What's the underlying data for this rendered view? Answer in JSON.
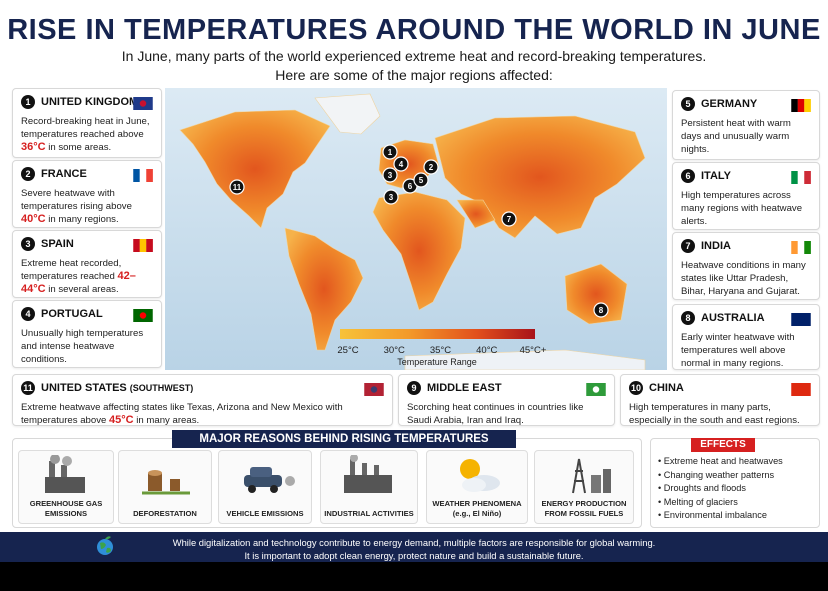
{
  "header": {
    "title": "RISE IN TEMPERATURES AROUND THE WORLD IN JUNE",
    "subtitle_lines": [
      "In June, many parts of the world experienced extreme heat and record-breaking temperatures.",
      "Here are some of the major regions affected:"
    ]
  },
  "regions": [
    {
      "number": "1",
      "name": "UNITED KINGDOM",
      "text": [
        {
          "text": "Record-breaking heat in June, temperatures reached above ",
          "highlight": false
        },
        {
          "text": "36°C",
          "highlight": true
        },
        {
          "text": " in some areas.",
          "highlight": false
        }
      ]
    },
    {
      "number": "2",
      "name": "FRANCE",
      "text": [
        {
          "text": "Severe heatwave with temperatures rising above ",
          "highlight": false
        },
        {
          "text": "40°C",
          "highlight": true
        },
        {
          "text": " in many regions.",
          "highlight": false
        }
      ]
    },
    {
      "number": "3",
      "name": "SPAIN",
      "text": [
        {
          "text": "Extreme heat recorded, temperatures reached ",
          "highlight": false
        },
        {
          "text": "42–44°C",
          "highlight": true
        },
        {
          "text": " in several areas.",
          "highlight": false
        }
      ]
    },
    {
      "number": "4",
      "name": "PORTUGAL",
      "text": [
        {
          "text": "Unusually high temperatures and intense heatwave conditions.",
          "highlight": false
        }
      ]
    },
    {
      "number": "5",
      "name": "GERMANY",
      "text": [
        {
          "text": "Persistent heat with warm days and unusually warm nights.",
          "highlight": false
        }
      ]
    },
    {
      "number": "6",
      "name": "ITALY",
      "text": [
        {
          "text": "High temperatures across many regions with heatwave alerts.",
          "highlight": false
        }
      ]
    },
    {
      "number": "7",
      "name": "INDIA",
      "text": [
        {
          "text": "Heatwave conditions in many states like Uttar Pradesh, Bihar, Haryana and Gujarat.",
          "highlight": false
        }
      ]
    },
    {
      "number": "8",
      "name": "AUSTRALIA",
      "text": [
        {
          "text": "Early winter heatwave with temperatures well above normal in many regions.",
          "highlight": false
        }
      ]
    },
    {
      "number": "11",
      "name": "UNITED STATES",
      "name_note": "(SOUTHWEST)",
      "text": [
        {
          "text": "Extreme heatwave affecting states like Texas, Arizona and New Mexico with temperatures above ",
          "highlight": false
        },
        {
          "text": "45°C",
          "highlight": true
        },
        {
          "text": " in many areas.",
          "highlight": false
        }
      ]
    },
    {
      "number": "9",
      "name": "MIDDLE EAST",
      "text": [
        {
          "text": "Scorching heat continues in countries like Saudi Arabia, Iran and Iraq.",
          "highlight": false
        }
      ]
    },
    {
      "number": "10",
      "name": "CHINA",
      "text": [
        {
          "text": "High temperatures in many parts, especially in the south and east regions.",
          "highlight": false
        }
      ]
    }
  ],
  "map": {
    "markers": [
      "1",
      "4",
      "2",
      "3",
      "6",
      "5",
      "3",
      "7",
      "8",
      "11"
    ],
    "legend": {
      "labels": [
        "25°C",
        "30°C",
        "35°C",
        "40°C",
        "45°C+"
      ],
      "title": "Temperature Range"
    }
  },
  "reasons": {
    "title": "MAJOR REASONS BEHIND RISING TEMPERATURES",
    "items": [
      {
        "lines": [
          "GREENHOUSE GAS EMISSIONS"
        ]
      },
      {
        "lines": [
          "DEFORESTATION"
        ]
      },
      {
        "lines": [
          "VEHICLE EMISSIONS"
        ]
      },
      {
        "lines": [
          "INDUSTRIAL ACTIVITIES"
        ]
      },
      {
        "lines": [
          "WEATHER PHENOMENA",
          "(e.g., El Niño)"
        ]
      },
      {
        "lines": [
          "ENERGY PRODUCTION",
          "FROM FOSSIL FUELS"
        ]
      }
    ]
  },
  "effects": {
    "title": "EFFECTS",
    "items": [
      "• Extreme heat and heatwaves",
      "• Changing weather patterns",
      "• Droughts and floods",
      "• Melting of glaciers",
      "• Environmental imbalance"
    ]
  },
  "footer": {
    "lines": [
      "While digitalization and technology contribute to energy demand, multiple factors are responsible for global warming.",
      "It is important to adopt clean energy, protect nature and build a sustainable future."
    ]
  }
}
